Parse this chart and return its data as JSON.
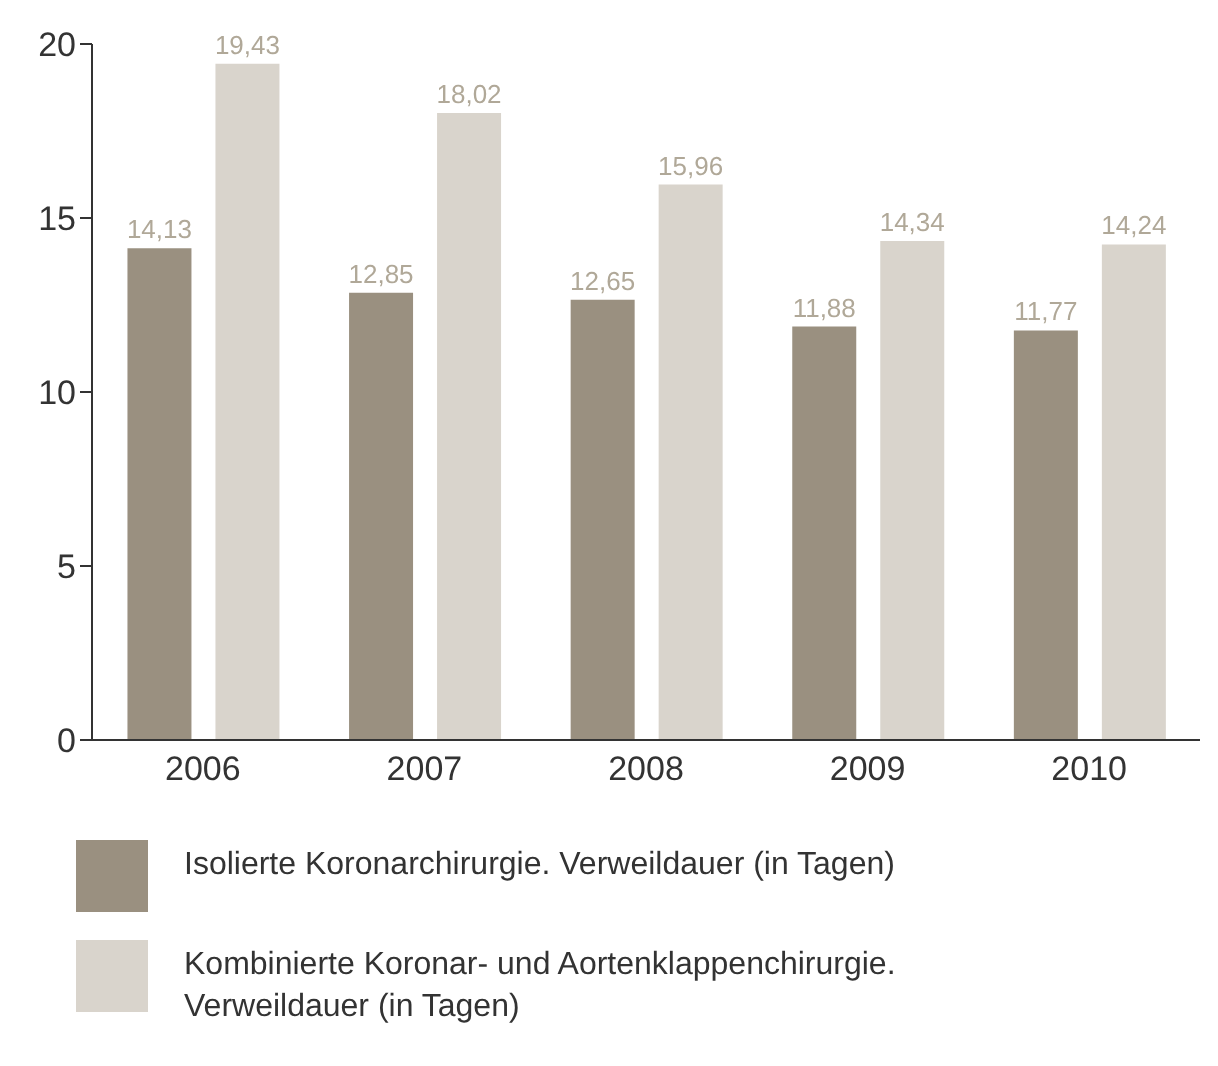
{
  "chart_data": {
    "type": "bar",
    "categories": [
      "2006",
      "2007",
      "2008",
      "2009",
      "2010"
    ],
    "series": [
      {
        "name": "Isolierte Koronarchirurgie. Verweildauer (in Tagen)",
        "color": "#9a9080",
        "values": [
          14.13,
          12.85,
          12.65,
          11.88,
          11.77
        ],
        "value_labels": [
          "14,13",
          "12,85",
          "12,65",
          "11,88",
          "11,77"
        ]
      },
      {
        "name": "Kombinierte Koronar- und Aortenklappenchirurgie. Verweildauer (in Tagen)",
        "color": "#d9d4cc",
        "values": [
          19.43,
          18.02,
          15.96,
          14.34,
          14.24
        ],
        "value_labels": [
          "19,43",
          "18,02",
          "15,96",
          "14,34",
          "14,24"
        ]
      }
    ],
    "ylim": [
      0,
      20
    ],
    "yticks": [
      0,
      5,
      10,
      15,
      20
    ],
    "grid": false,
    "legend": "bottom"
  }
}
